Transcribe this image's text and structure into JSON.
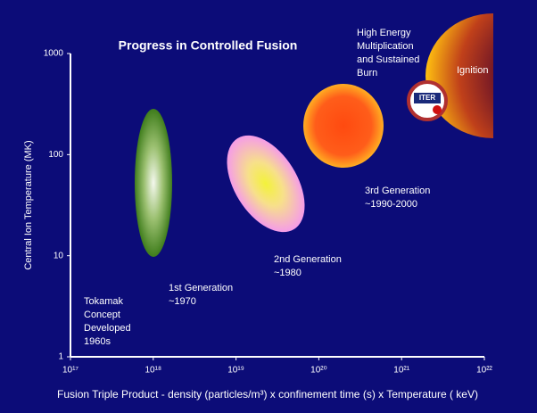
{
  "chart_data": {
    "type": "region-map",
    "title": "Progress in Controlled Fusion",
    "x_label": "Fusion Triple Product - density (particles/m³) x confinement time (s) x Temperature ( keV)",
    "y_label": "Central Ion Temperature (MK)",
    "log_x": true,
    "log_y": true,
    "xlim": [
      1e+17,
      1e+22
    ],
    "xticks": [
      {
        "value": 1e+17,
        "label": "10¹⁷"
      },
      {
        "value": 1e+18,
        "label": "10¹⁸"
      },
      {
        "value": 1e+19,
        "label": "10¹⁹"
      },
      {
        "value": 1e+20,
        "label": "10²⁰"
      },
      {
        "value": 1e+21,
        "label": "10²¹"
      },
      {
        "value": 1e+22,
        "label": "10²²"
      }
    ],
    "ylim": [
      1,
      1000
    ],
    "yticks": [
      1,
      10,
      100,
      1000
    ],
    "annotations": [
      [
        "Tokamak",
        "Concept",
        "Developed",
        "1960s"
      ],
      [
        "1st Generation",
        "~1970"
      ],
      [
        "2nd Generation",
        "~1980"
      ],
      [
        "3rd Generation",
        "~1990-2000"
      ],
      [
        "High Energy",
        "Multiplication",
        "and Sustained",
        "Burn"
      ],
      [
        "Ignition"
      ]
    ],
    "logo_text": "ITER"
  }
}
